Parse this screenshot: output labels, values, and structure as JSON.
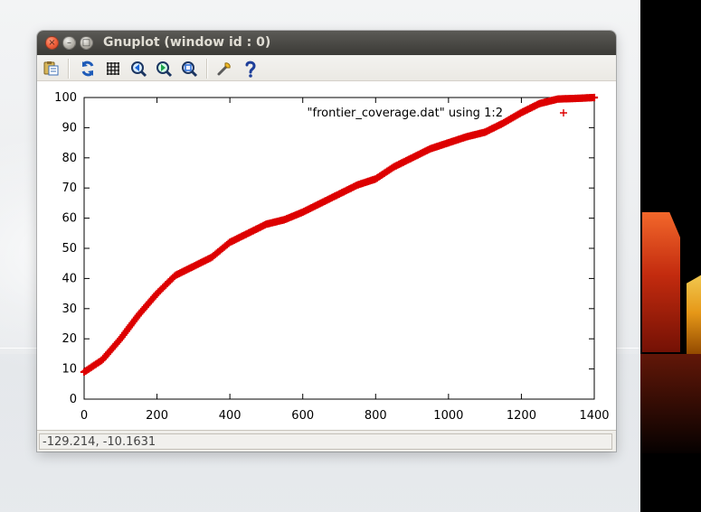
{
  "window": {
    "title": "Gnuplot (window id : 0)",
    "controls": {
      "close": "×",
      "minimize": "–",
      "maximize": "□"
    }
  },
  "toolbar": {
    "buttons": [
      {
        "name": "copy-clipboard-icon"
      },
      {
        "name": "replot-icon"
      },
      {
        "name": "grid-icon"
      },
      {
        "name": "zoom-previous-icon"
      },
      {
        "name": "zoom-next-icon"
      },
      {
        "name": "autoscale-icon"
      },
      {
        "name": "settings-icon"
      },
      {
        "name": "help-icon"
      }
    ]
  },
  "status": {
    "coordinates": "-129.214, -10.1631"
  },
  "colors": {
    "series": "#dd0000",
    "axes": "#000000",
    "window_title_bar": "#3b3a36",
    "status_text": "#444444"
  },
  "chart_data": {
    "type": "scatter",
    "title": "",
    "xlabel": "",
    "ylabel": "",
    "xlim": [
      0,
      1400
    ],
    "ylim": [
      0,
      100
    ],
    "xticks": [
      "0",
      "200",
      "400",
      "600",
      "800",
      "1000",
      "1200",
      "1400"
    ],
    "yticks": [
      "0",
      "10",
      "20",
      "30",
      "40",
      "50",
      "60",
      "70",
      "80",
      "90",
      "100"
    ],
    "grid": false,
    "legend_position": "top-right",
    "series": [
      {
        "name": "\"frontier_coverage.dat\" using 1:2",
        "marker": "+",
        "color": "#dd0000",
        "points": [
          [
            0,
            9
          ],
          [
            50,
            13
          ],
          [
            100,
            20
          ],
          [
            150,
            28
          ],
          [
            200,
            35
          ],
          [
            250,
            41
          ],
          [
            300,
            44
          ],
          [
            350,
            47
          ],
          [
            400,
            52
          ],
          [
            450,
            55
          ],
          [
            500,
            58
          ],
          [
            550,
            59.5
          ],
          [
            600,
            62
          ],
          [
            650,
            65
          ],
          [
            700,
            68
          ],
          [
            750,
            71
          ],
          [
            800,
            73
          ],
          [
            850,
            77
          ],
          [
            900,
            80
          ],
          [
            950,
            83
          ],
          [
            1000,
            85
          ],
          [
            1050,
            87
          ],
          [
            1100,
            88.5
          ],
          [
            1150,
            91.5
          ],
          [
            1200,
            95
          ],
          [
            1250,
            98
          ],
          [
            1300,
            99.5
          ],
          [
            1350,
            99.7
          ],
          [
            1400,
            100
          ]
        ]
      }
    ]
  }
}
